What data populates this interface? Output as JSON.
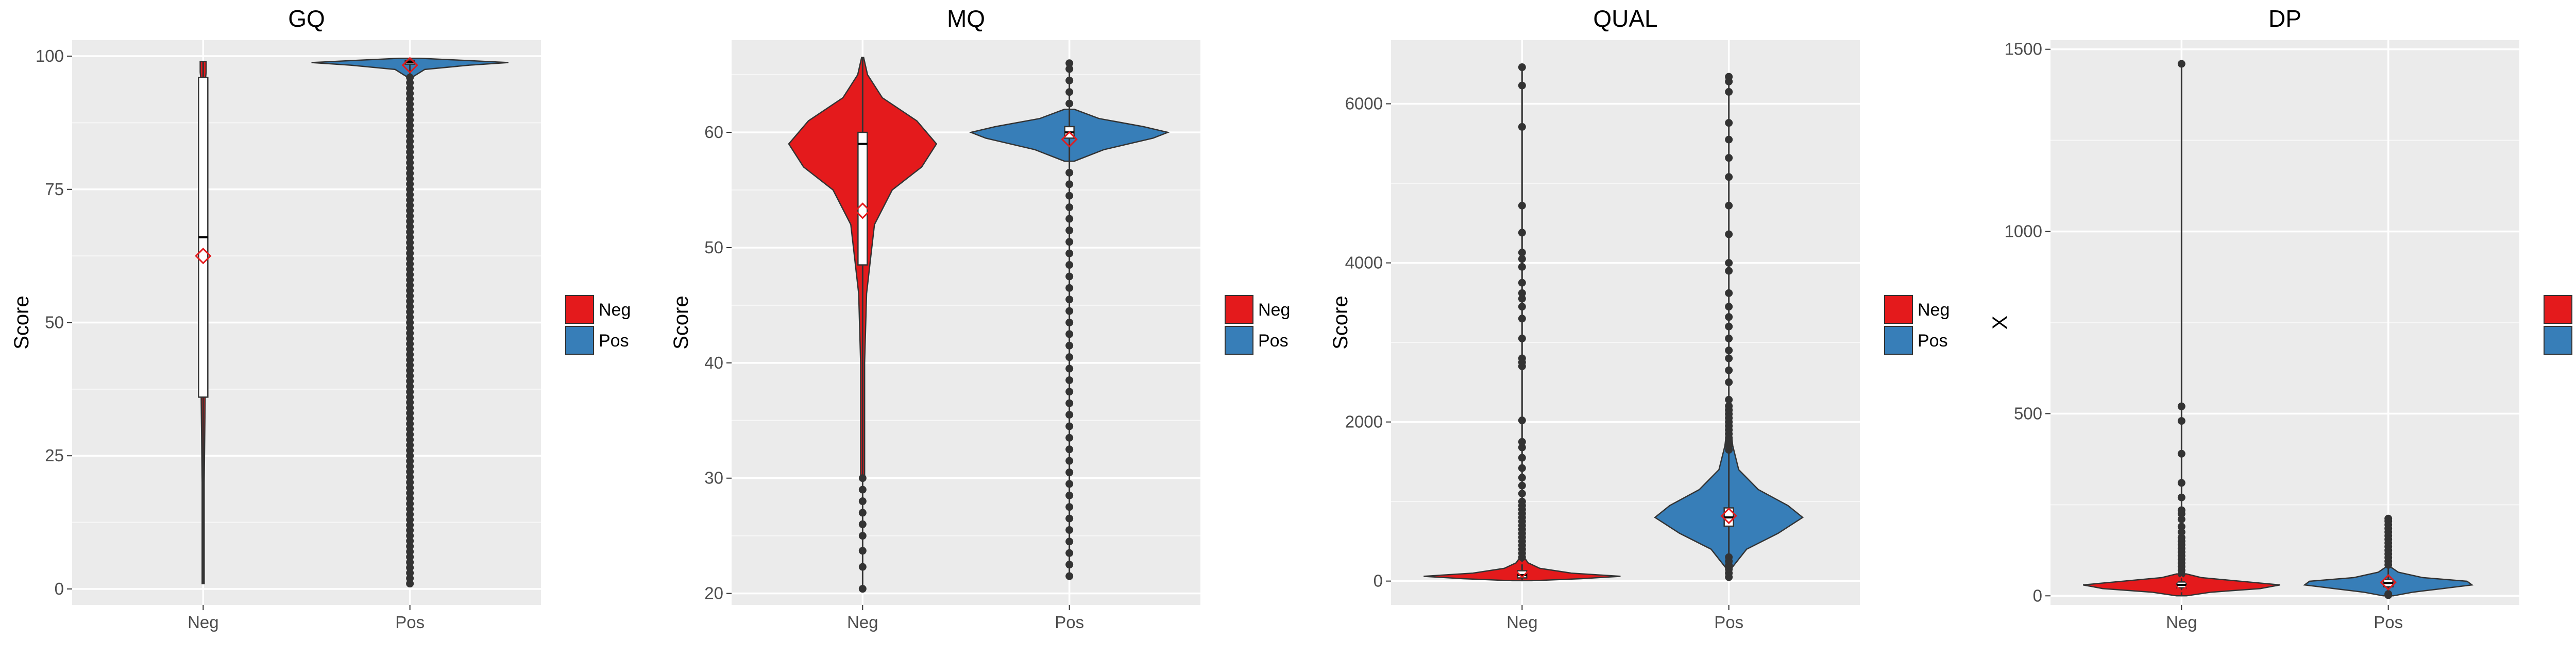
{
  "chart_data": [
    {
      "type": "violin",
      "title": "GQ",
      "xlabel": "",
      "ylabel": "Score",
      "categories": [
        "Neg",
        "Pos"
      ],
      "ylim": [
        -3,
        103
      ],
      "yticks": [
        0,
        25,
        50,
        75,
        100
      ],
      "series": [
        {
          "name": "Neg",
          "color": "#e41a1c",
          "violin": [
            [
              1,
              0.01
            ],
            [
              20,
              0.01
            ],
            [
              36,
              0.02
            ],
            [
              50,
              0.02
            ],
            [
              65,
              0.02
            ],
            [
              80,
              0.02
            ],
            [
              95,
              0.02
            ],
            [
              97,
              0.03
            ],
            [
              99,
              0.03
            ]
          ],
          "box": {
            "q1": 36,
            "median": 66,
            "q3": 96
          },
          "mean": 62.5,
          "outliers": []
        },
        {
          "name": "Pos",
          "color": "#377eb8",
          "violin": [
            [
              96,
              0.02
            ],
            [
              97.5,
              0.15
            ],
            [
              98.3,
              0.6
            ],
            [
              98.8,
              1.0
            ],
            [
              99.2,
              0.55
            ],
            [
              99.6,
              0.1
            ]
          ],
          "box": {
            "q1": 98.5,
            "median": 98.9,
            "q3": 99.2
          },
          "mean": 98.3,
          "outliers": [
            1,
            2,
            3,
            4,
            5,
            6,
            7,
            8,
            9,
            10,
            11,
            12,
            13,
            14,
            15,
            16,
            17,
            18,
            19,
            20,
            21,
            22,
            23,
            24,
            25,
            26,
            27,
            28,
            29,
            30,
            31,
            32,
            33,
            34,
            35,
            36,
            37,
            38,
            39,
            40,
            41,
            42,
            43,
            44,
            45,
            46,
            47,
            48,
            49,
            50,
            51,
            52,
            53,
            54,
            55,
            56,
            57,
            58,
            59,
            60,
            61,
            62,
            63,
            64,
            65,
            66,
            67,
            68,
            69,
            70,
            71,
            72,
            73,
            74,
            75,
            76,
            77,
            78,
            79,
            80,
            81,
            82,
            83,
            84,
            85,
            86,
            87,
            88,
            89,
            90,
            91,
            92,
            93,
            94,
            95,
            96
          ]
        }
      ]
    },
    {
      "type": "violin",
      "title": "MQ",
      "xlabel": "",
      "ylabel": "Score",
      "categories": [
        "Neg",
        "Pos"
      ],
      "ylim": [
        19,
        68
      ],
      "yticks": [
        20,
        30,
        40,
        50,
        60
      ],
      "series": [
        {
          "name": "Neg",
          "color": "#e41a1c",
          "violin": [
            [
              30,
              0.02
            ],
            [
              40,
              0.02
            ],
            [
              46,
              0.04
            ],
            [
              49,
              0.08
            ],
            [
              52,
              0.12
            ],
            [
              55,
              0.3
            ],
            [
              57,
              0.6
            ],
            [
              59,
              0.75
            ],
            [
              61,
              0.55
            ],
            [
              63,
              0.2
            ],
            [
              65,
              0.05
            ],
            [
              66.5,
              0.01
            ]
          ],
          "box": {
            "q1": 48.5,
            "median": 59,
            "q3": 60
          },
          "mean": 53.2,
          "outliers": [
            20.4,
            22.3,
            23.7,
            25,
            26,
            27,
            28,
            29,
            30
          ]
        },
        {
          "name": "Pos",
          "color": "#377eb8",
          "violin": [
            [
              57.5,
              0.05
            ],
            [
              58.5,
              0.35
            ],
            [
              59.5,
              0.85
            ],
            [
              60,
              1.0
            ],
            [
              60.5,
              0.75
            ],
            [
              61.2,
              0.3
            ],
            [
              62,
              0.05
            ]
          ],
          "box": {
            "q1": 59.5,
            "median": 60,
            "q3": 60.5
          },
          "mean": 59.4,
          "outliers": [
            21.5,
            22.5,
            23.5,
            24.5,
            25.5,
            26.5,
            27.5,
            28.5,
            29.5,
            30.5,
            31.5,
            32.5,
            33.5,
            34.5,
            35.5,
            36.5,
            37.5,
            38.5,
            39.5,
            40.5,
            41.5,
            42.5,
            43.5,
            44.5,
            45.5,
            46.5,
            47.5,
            48.5,
            49.5,
            50.5,
            51.5,
            52.5,
            53.5,
            54.5,
            55.5,
            56.5,
            62.5,
            63.5,
            64.5,
            65.5,
            66
          ]
        }
      ]
    },
    {
      "type": "violin",
      "title": "QUAL",
      "xlabel": "",
      "ylabel": "Score",
      "categories": [
        "Neg",
        "Pos"
      ],
      "ylim": [
        -300,
        6800
      ],
      "yticks": [
        0,
        2000,
        4000,
        6000
      ],
      "series": [
        {
          "name": "Neg",
          "color": "#e41a1c",
          "violin": [
            [
              5,
              0.1
            ],
            [
              30,
              0.6
            ],
            [
              60,
              1.0
            ],
            [
              100,
              0.5
            ],
            [
              160,
              0.18
            ],
            [
              230,
              0.06
            ],
            [
              320,
              0.01
            ]
          ],
          "box": {
            "q1": 40,
            "median": 75,
            "q3": 130
          },
          "mean": 140,
          "outliers": [
            300,
            350,
            400,
            450,
            500,
            550,
            600,
            650,
            700,
            750,
            800,
            850,
            900,
            950,
            1000,
            1100,
            1200,
            1300,
            1420,
            1550,
            1680,
            1750,
            2020,
            2700,
            2750,
            2800,
            3050,
            3300,
            3450,
            3550,
            3620,
            3750,
            3950,
            4050,
            4130,
            4380,
            4720,
            5710,
            6230,
            6460
          ]
        },
        {
          "name": "Pos",
          "color": "#377eb8",
          "violin": [
            [
              150,
              0.02
            ],
            [
              400,
              0.18
            ],
            [
              600,
              0.5
            ],
            [
              800,
              0.75
            ],
            [
              950,
              0.6
            ],
            [
              1150,
              0.3
            ],
            [
              1400,
              0.1
            ],
            [
              1700,
              0.04
            ],
            [
              2000,
              0.01
            ]
          ],
          "box": {
            "q1": 690,
            "median": 800,
            "q3": 920
          },
          "mean": 820,
          "outliers": [
            50,
            100,
            150,
            200,
            250,
            300,
            1650,
            1700,
            1750,
            1800,
            1850,
            1900,
            1950,
            2000,
            2050,
            2100,
            2150,
            2200,
            2280,
            2500,
            2650,
            2800,
            2900,
            3050,
            3200,
            3320,
            3450,
            3620,
            3900,
            4000,
            4360,
            4720,
            5080,
            5320,
            5550,
            5760,
            6150,
            6280,
            6340
          ]
        }
      ]
    },
    {
      "type": "violin",
      "title": "DP",
      "xlabel": "",
      "ylabel": "X",
      "categories": [
        "Neg",
        "Pos"
      ],
      "ylim": [
        -25,
        1525
      ],
      "yticks": [
        0,
        500,
        1000,
        1500
      ],
      "series": [
        {
          "name": "Neg",
          "color": "#e41a1c",
          "violin": [
            [
              0,
              0.05
            ],
            [
              10,
              0.3
            ],
            [
              20,
              0.8
            ],
            [
              30,
              1.0
            ],
            [
              40,
              0.6
            ],
            [
              50,
              0.2
            ],
            [
              60,
              0.05
            ]
          ],
          "box": {
            "q1": 22,
            "median": 30,
            "q3": 38
          },
          "mean": 32,
          "outliers": [
            60,
            70,
            80,
            90,
            100,
            110,
            120,
            130,
            140,
            150,
            160,
            175,
            190,
            210,
            225,
            235,
            270,
            310,
            390,
            480,
            520,
            1460
          ]
        },
        {
          "name": "Pos",
          "color": "#377eb8",
          "violin": [
            [
              0,
              0.05
            ],
            [
              10,
              0.25
            ],
            [
              20,
              0.55
            ],
            [
              30,
              0.85
            ],
            [
              40,
              0.8
            ],
            [
              50,
              0.35
            ],
            [
              65,
              0.1
            ],
            [
              80,
              0.02
            ]
          ],
          "box": {
            "q1": 25,
            "median": 35,
            "q3": 45
          },
          "mean": 37,
          "outliers": [
            2,
            5,
            85,
            95,
            105,
            115,
            125,
            135,
            145,
            155,
            165,
            175,
            185,
            195,
            205,
            212
          ]
        }
      ]
    }
  ]
}
